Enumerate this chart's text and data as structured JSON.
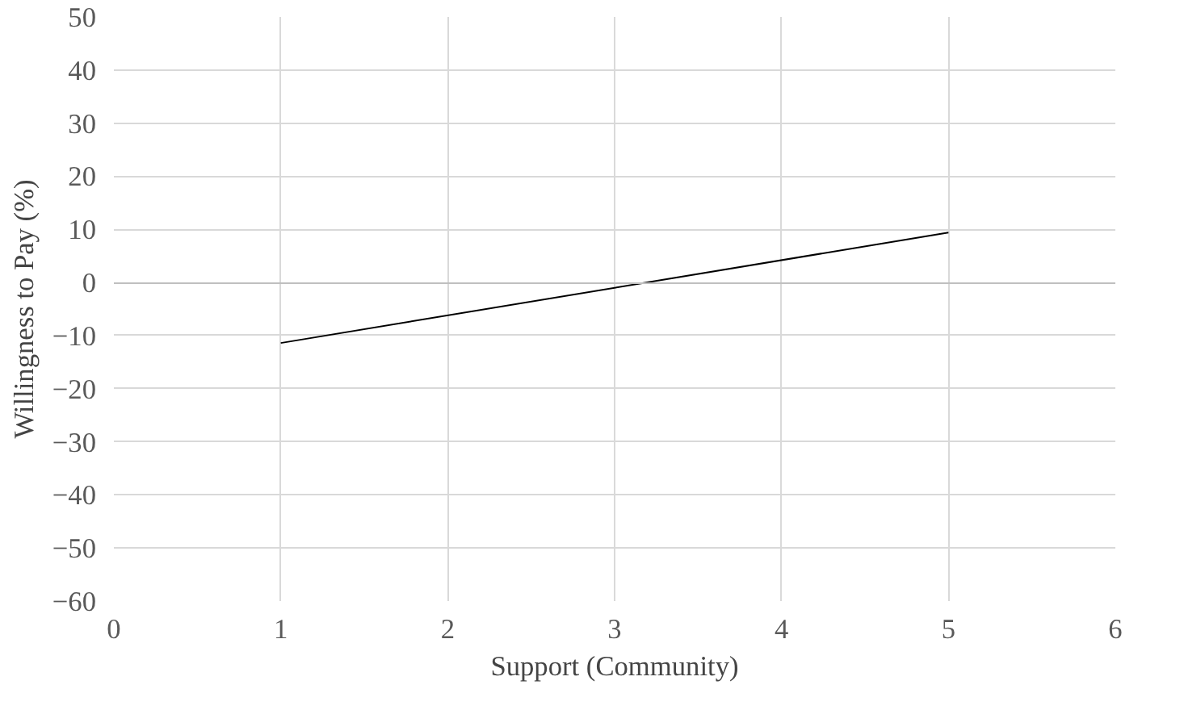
{
  "chart_data": {
    "type": "line",
    "xlabel": "Support (Community)",
    "ylabel": "Willingness to Pay (%)",
    "x": [
      1,
      5
    ],
    "series": [
      {
        "color": "#000000",
        "values": [
          -11.4,
          9.4
        ]
      }
    ],
    "xlim": [
      0,
      6
    ],
    "xticks": [
      0,
      1,
      2,
      3,
      4,
      5,
      6
    ],
    "ylim": [
      -60,
      50
    ],
    "yticks": [
      -60,
      -50,
      -40,
      -30,
      -20,
      -10,
      0,
      10,
      20,
      30,
      40,
      50
    ],
    "grid": true
  }
}
